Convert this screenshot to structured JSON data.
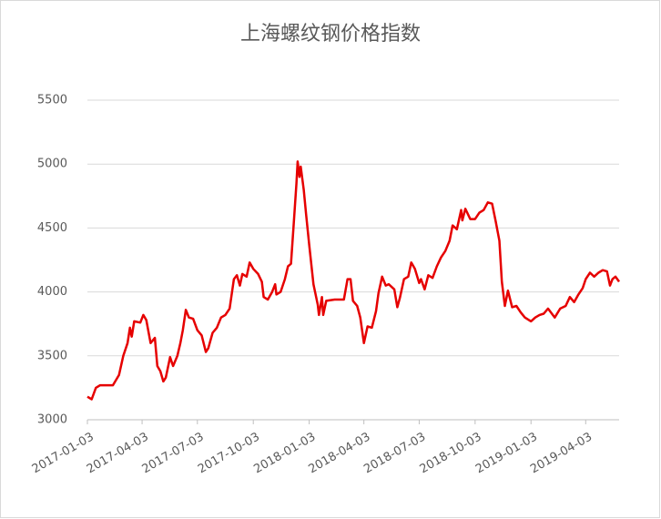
{
  "chart_data": {
    "type": "line",
    "title": "上海螺纹钢价格指数",
    "x": [
      "2017-01-03",
      "2017-01-10",
      "2017-01-17",
      "2017-01-24",
      "2017-02-14",
      "2017-02-24",
      "2017-03-03",
      "2017-03-10",
      "2017-03-14",
      "2017-03-17",
      "2017-03-21",
      "2017-03-31",
      "2017-04-05",
      "2017-04-10",
      "2017-04-17",
      "2017-04-24",
      "2017-04-28",
      "2017-05-03",
      "2017-05-08",
      "2017-05-12",
      "2017-05-19",
      "2017-05-24",
      "2017-05-31",
      "2017-06-05",
      "2017-06-09",
      "2017-06-14",
      "2017-06-19",
      "2017-06-26",
      "2017-07-03",
      "2017-07-10",
      "2017-07-17",
      "2017-07-21",
      "2017-07-28",
      "2017-08-04",
      "2017-08-11",
      "2017-08-18",
      "2017-08-25",
      "2017-09-01",
      "2017-09-06",
      "2017-09-11",
      "2017-09-15",
      "2017-09-22",
      "2017-09-27",
      "2017-10-03",
      "2017-10-11",
      "2017-10-17",
      "2017-10-20",
      "2017-10-27",
      "2017-11-03",
      "2017-11-08",
      "2017-11-10",
      "2017-11-17",
      "2017-11-24",
      "2017-11-29",
      "2017-12-04",
      "2017-12-08",
      "2017-12-13",
      "2017-12-15",
      "2017-12-18",
      "2017-12-20",
      "2017-12-25",
      "2017-12-29",
      "2018-01-03",
      "2018-01-10",
      "2018-01-17",
      "2018-01-19",
      "2018-01-24",
      "2018-01-26",
      "2018-01-31",
      "2018-02-14",
      "2018-03-01",
      "2018-03-07",
      "2018-03-12",
      "2018-03-16",
      "2018-03-23",
      "2018-03-28",
      "2018-04-03",
      "2018-04-09",
      "2018-04-16",
      "2018-04-23",
      "2018-04-27",
      "2018-05-03",
      "2018-05-09",
      "2018-05-14",
      "2018-05-23",
      "2018-05-28",
      "2018-06-01",
      "2018-06-08",
      "2018-06-15",
      "2018-06-20",
      "2018-06-26",
      "2018-07-03",
      "2018-07-06",
      "2018-07-12",
      "2018-07-18",
      "2018-07-25",
      "2018-08-01",
      "2018-08-08",
      "2018-08-15",
      "2018-08-22",
      "2018-08-27",
      "2018-09-03",
      "2018-09-10",
      "2018-09-12",
      "2018-09-17",
      "2018-09-25",
      "2018-10-03",
      "2018-10-10",
      "2018-10-17",
      "2018-10-24",
      "2018-10-31",
      "2018-11-06",
      "2018-11-12",
      "2018-11-16",
      "2018-11-21",
      "2018-11-26",
      "2018-12-03",
      "2018-12-10",
      "2018-12-17",
      "2018-12-24",
      "2019-01-03",
      "2019-01-10",
      "2019-01-17",
      "2019-01-24",
      "2019-01-31",
      "2019-02-11",
      "2019-02-20",
      "2019-03-01",
      "2019-03-08",
      "2019-03-15",
      "2019-03-22",
      "2019-03-29",
      "2019-04-03",
      "2019-04-10",
      "2019-04-17",
      "2019-04-24",
      "2019-05-01",
      "2019-05-08",
      "2019-05-13",
      "2019-05-17",
      "2019-05-22",
      "2019-05-28"
    ],
    "series": [
      {
        "name": "上海螺纹钢价格指数",
        "color": "#e60000",
        "values": [
          3180,
          3160,
          3250,
          3270,
          3270,
          3350,
          3500,
          3600,
          3720,
          3650,
          3770,
          3760,
          3820,
          3780,
          3600,
          3640,
          3420,
          3380,
          3300,
          3330,
          3490,
          3420,
          3500,
          3600,
          3700,
          3860,
          3800,
          3790,
          3700,
          3660,
          3530,
          3560,
          3680,
          3720,
          3800,
          3820,
          3870,
          4100,
          4130,
          4050,
          4140,
          4120,
          4230,
          4180,
          4140,
          4080,
          3960,
          3940,
          4000,
          4060,
          3980,
          4000,
          4100,
          4200,
          4220,
          4500,
          4850,
          5020,
          4900,
          4980,
          4800,
          4600,
          4370,
          4060,
          3900,
          3820,
          3960,
          3820,
          3930,
          3940,
          3940,
          4100,
          4100,
          3930,
          3890,
          3800,
          3600,
          3730,
          3720,
          3850,
          3990,
          4120,
          4050,
          4060,
          4020,
          3880,
          3950,
          4100,
          4120,
          4230,
          4180,
          4070,
          4100,
          4020,
          4130,
          4110,
          4200,
          4270,
          4320,
          4400,
          4520,
          4490,
          4640,
          4560,
          4650,
          4570,
          4570,
          4620,
          4640,
          4700,
          4690,
          4550,
          4400,
          4080,
          3890,
          4010,
          3880,
          3890,
          3840,
          3800,
          3770,
          3800,
          3820,
          3830,
          3870,
          3800,
          3870,
          3890,
          3960,
          3920,
          3980,
          4030,
          4100,
          4150,
          4120,
          4150,
          4170,
          4160,
          4050,
          4100,
          4120,
          4080
        ]
      }
    ],
    "xlim": [
      "2017-01-03",
      "2019-05-28"
    ],
    "xticks": [
      "2017-01-03",
      "2017-04-03",
      "2017-07-03",
      "2017-10-03",
      "2018-01-03",
      "2018-04-03",
      "2018-07-03",
      "2018-10-03",
      "2019-01-03",
      "2019-04-03"
    ],
    "ylim": [
      3000,
      5500
    ],
    "yticks": [
      3000,
      3500,
      4000,
      4500,
      5000,
      5500
    ],
    "grid": true
  }
}
